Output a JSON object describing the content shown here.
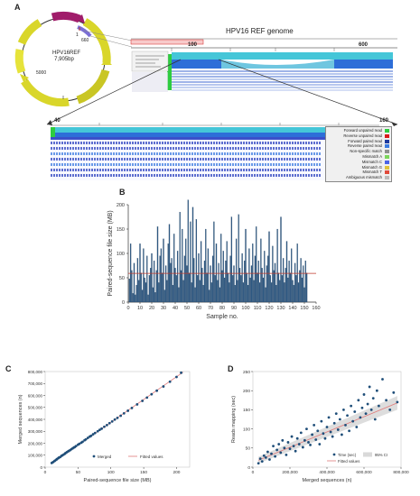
{
  "panels": {
    "a": "A",
    "b": "B",
    "c": "C",
    "d": "D"
  },
  "genome": {
    "plasmid_name": "HPV16REF",
    "plasmid_size": "7,905bp",
    "marker_1": "1",
    "marker_660": "660",
    "marker_5000": "5000",
    "title": "HPV16 REF genome",
    "track_start": "100",
    "track_end": "600",
    "zoom_start": "40",
    "zoom_end": "160",
    "legend": [
      {
        "label": "Forward unpaired read",
        "color": "#2ecc40"
      },
      {
        "label": "Reverse unpaired read",
        "color": "#d81b1b"
      },
      {
        "label": "Forward paired read",
        "color": "#1e3a9e"
      },
      {
        "label": "Reverse paired read",
        "color": "#3b7be0"
      },
      {
        "label": "Non-specific match",
        "color": "#8f8f8f"
      },
      {
        "label": "Mismatch A",
        "color": "#7cd65b"
      },
      {
        "label": "Mismatch C",
        "color": "#4a63e6"
      },
      {
        "label": "Mismatch G",
        "color": "#e0c23a"
      },
      {
        "label": "Mismatch T",
        "color": "#e04a3a"
      },
      {
        "label": "Ambiguous mismatch",
        "color": "#bbbbbb"
      }
    ]
  },
  "colors": {
    "bar": "#2f5a84",
    "point": "#1f4e79",
    "fit": "#e07a7a",
    "ci": "#d9d9d9",
    "refline": "#c0392b"
  },
  "chart_data": [
    {
      "type": "bar",
      "panel": "B",
      "xlabel": "Sample no.",
      "ylabel": "Paired-sequence file size (MB)",
      "xlim": [
        0,
        160
      ],
      "ylim": [
        0,
        200
      ],
      "xticks": [
        0,
        10,
        20,
        30,
        40,
        50,
        60,
        70,
        80,
        90,
        100,
        110,
        120,
        130,
        140,
        150,
        160
      ],
      "yticks": [
        0,
        50,
        100,
        150,
        200
      ],
      "reference_line": 59,
      "values": [
        48,
        120,
        65,
        18,
        80,
        15,
        35,
        90,
        45,
        120,
        60,
        25,
        110,
        50,
        40,
        95,
        15,
        55,
        70,
        100,
        30,
        85,
        20,
        65,
        155,
        40,
        95,
        110,
        60,
        130,
        25,
        75,
        45,
        120,
        160,
        80,
        90,
        35,
        140,
        70,
        55,
        105,
        30,
        185,
        65,
        150,
        45,
        95,
        130,
        75,
        210,
        60,
        165,
        40,
        195,
        90,
        30,
        170,
        55,
        100,
        45,
        125,
        70,
        35,
        85,
        150,
        60,
        110,
        25,
        75,
        40,
        95,
        165,
        55,
        120,
        45,
        80,
        30,
        140,
        65,
        105,
        50,
        85,
        125,
        60,
        40,
        95,
        175,
        55,
        75,
        35,
        130,
        45,
        180,
        70,
        55,
        100,
        40,
        85,
        150,
        60,
        35,
        110,
        50,
        75,
        120,
        45,
        95,
        155,
        60,
        85,
        40,
        130,
        70,
        50,
        105,
        30,
        75,
        95,
        145,
        55,
        40,
        115,
        65,
        80,
        35,
        150,
        60,
        45,
        175,
        55,
        90,
        40,
        70,
        125,
        50,
        85,
        60,
        110,
        45,
        35,
        80,
        55,
        120,
        40,
        65,
        90,
        50,
        75,
        30,
        85,
        60
      ]
    },
    {
      "type": "scatter",
      "panel": "C",
      "xlabel": "Paired-sequence file size (MB)",
      "ylabel": "Merged sequences (n)",
      "xlim": [
        0,
        220
      ],
      "ylim": [
        0,
        800000
      ],
      "xticks": [
        0,
        50,
        100,
        150,
        200
      ],
      "yticks": [
        0,
        100000,
        200000,
        300000,
        400000,
        500000,
        600000,
        700000,
        800000
      ],
      "ytick_labels": [
        "0",
        "100,000",
        "200,000",
        "300,000",
        "400,000",
        "500,000",
        "600,000",
        "700,000",
        "800,000"
      ],
      "legend": [
        "Merged",
        "Fitted values"
      ],
      "fit": {
        "x0": 10,
        "y0": 32000,
        "x1": 210,
        "y1": 795000
      },
      "points": [
        [
          10,
          35000
        ],
        [
          12,
          42000
        ],
        [
          14,
          50000
        ],
        [
          15,
          55000
        ],
        [
          17,
          62000
        ],
        [
          18,
          68000
        ],
        [
          20,
          75000
        ],
        [
          21,
          80000
        ],
        [
          23,
          85000
        ],
        [
          25,
          95000
        ],
        [
          26,
          98000
        ],
        [
          28,
          105000
        ],
        [
          30,
          112000
        ],
        [
          31,
          118000
        ],
        [
          33,
          125000
        ],
        [
          35,
          132000
        ],
        [
          36,
          136000
        ],
        [
          38,
          142000
        ],
        [
          40,
          150000
        ],
        [
          42,
          158000
        ],
        [
          44,
          165000
        ],
        [
          45,
          168000
        ],
        [
          47,
          176000
        ],
        [
          50,
          188000
        ],
        [
          52,
          195000
        ],
        [
          55,
          205000
        ],
        [
          57,
          212000
        ],
        [
          60,
          225000
        ],
        [
          62,
          232000
        ],
        [
          65,
          245000
        ],
        [
          68,
          256000
        ],
        [
          70,
          262000
        ],
        [
          73,
          275000
        ],
        [
          76,
          286000
        ],
        [
          80,
          300000
        ],
        [
          83,
          312000
        ],
        [
          86,
          322000
        ],
        [
          90,
          338000
        ],
        [
          94,
          352000
        ],
        [
          98,
          368000
        ],
        [
          102,
          382000
        ],
        [
          106,
          398000
        ],
        [
          110,
          412000
        ],
        [
          115,
          430000
        ],
        [
          120,
          450000
        ],
        [
          126,
          472000
        ],
        [
          132,
          495000
        ],
        [
          140,
          525000
        ],
        [
          148,
          555000
        ],
        [
          155,
          582000
        ],
        [
          162,
          610000
        ],
        [
          170,
          640000
        ],
        [
          180,
          675000
        ],
        [
          190,
          715000
        ],
        [
          200,
          755000
        ],
        [
          207,
          790000
        ]
      ]
    },
    {
      "type": "scatter",
      "panel": "D",
      "xlabel": "Merged sequences (n)",
      "ylabel": "Reads mapping (sec)",
      "xlim": [
        0,
        800000
      ],
      "ylim": [
        0,
        250
      ],
      "xticks": [
        0,
        200000,
        400000,
        600000,
        800000
      ],
      "xtick_labels": [
        "0",
        "200,000",
        "400,000",
        "600,000",
        "800,000"
      ],
      "yticks": [
        0,
        50,
        100,
        150,
        200,
        250
      ],
      "legend": [
        "Time (sec)",
        "95% CI",
        "Fitted values"
      ],
      "fit": {
        "x0": 30000,
        "y0": 18,
        "x1": 780000,
        "y1": 168
      },
      "ci": {
        "x0": 30000,
        "lo0": 10,
        "hi0": 27,
        "x1": 780000,
        "lo1": 150,
        "hi1": 186
      },
      "points": [
        [
          30000,
          10
        ],
        [
          40000,
          22
        ],
        [
          50000,
          15
        ],
        [
          60000,
          30
        ],
        [
          70000,
          25
        ],
        [
          80000,
          40
        ],
        [
          90000,
          20
        ],
        [
          100000,
          35
        ],
        [
          110000,
          55
        ],
        [
          120000,
          28
        ],
        [
          130000,
          45
        ],
        [
          140000,
          60
        ],
        [
          150000,
          38
        ],
        [
          160000,
          70
        ],
        [
          170000,
          50
        ],
        [
          180000,
          32
        ],
        [
          190000,
          65
        ],
        [
          200000,
          48
        ],
        [
          210000,
          80
        ],
        [
          220000,
          55
        ],
        [
          230000,
          42
        ],
        [
          240000,
          75
        ],
        [
          250000,
          60
        ],
        [
          260000,
          90
        ],
        [
          270000,
          52
        ],
        [
          280000,
          70
        ],
        [
          290000,
          100
        ],
        [
          300000,
          65
        ],
        [
          310000,
          58
        ],
        [
          320000,
          85
        ],
        [
          330000,
          110
        ],
        [
          340000,
          72
        ],
        [
          350000,
          95
        ],
        [
          360000,
          60
        ],
        [
          370000,
          120
        ],
        [
          380000,
          88
        ],
        [
          390000,
          75
        ],
        [
          400000,
          105
        ],
        [
          410000,
          130
        ],
        [
          420000,
          92
        ],
        [
          430000,
          80
        ],
        [
          440000,
          115
        ],
        [
          450000,
          140
        ],
        [
          460000,
          98
        ],
        [
          470000,
          125
        ],
        [
          480000,
          85
        ],
        [
          490000,
          150
        ],
        [
          500000,
          110
        ],
        [
          510000,
          135
        ],
        [
          520000,
          95
        ],
        [
          530000,
          160
        ],
        [
          540000,
          120
        ],
        [
          550000,
          145
        ],
        [
          560000,
          105
        ],
        [
          570000,
          175
        ],
        [
          580000,
          130
        ],
        [
          590000,
          155
        ],
        [
          600000,
          190
        ],
        [
          610000,
          140
        ],
        [
          620000,
          165
        ],
        [
          630000,
          210
        ],
        [
          640000,
          150
        ],
        [
          650000,
          180
        ],
        [
          660000,
          125
        ],
        [
          670000,
          200
        ],
        [
          680000,
          160
        ],
        [
          700000,
          230
        ],
        [
          720000,
          175
        ],
        [
          740000,
          150
        ],
        [
          760000,
          195
        ],
        [
          780000,
          170
        ]
      ]
    }
  ]
}
